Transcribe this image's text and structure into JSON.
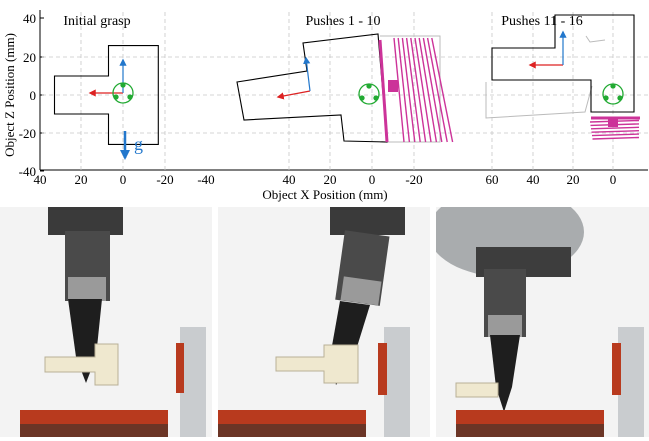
{
  "chart_data": {
    "type": "line",
    "ylabel": "Object Z Position (mm)",
    "xlabel": "Object X Position (mm)",
    "y_ticks": [
      "40",
      "20",
      "0",
      "-20",
      "-40"
    ],
    "ylim": [
      -40,
      40
    ],
    "panels": [
      {
        "title": "Initial grasp",
        "x_ticks": [
          "40",
          "20",
          "0",
          "-20",
          "-40"
        ],
        "xlim": [
          40,
          -40
        ],
        "gravity_label": "g",
        "outline_x": [
          33,
          7,
          7,
          -17,
          -17,
          7,
          7,
          33
        ],
        "outline_z": [
          10,
          10,
          26,
          26,
          -26,
          -26,
          -10,
          -10
        ],
        "gripper_contact_x": 0,
        "gripper_contact_z": 0
      },
      {
        "title": "Pushes 1 - 10",
        "x_ticks": [
          "40",
          "20",
          "0",
          "-20"
        ],
        "xlim": [
          60,
          -32
        ],
        "push_lines": 10
      },
      {
        "title": "Pushes 11 - 16",
        "x_ticks": [
          "60",
          "40",
          "20",
          "0"
        ],
        "xlim": [
          74,
          -12
        ],
        "push_lines": 6
      }
    ]
  },
  "colors": {
    "object_outline": "#000000",
    "push_trace": "#cc3399",
    "gripper": "#22aa33",
    "x_axis_arrow": "#dd2222",
    "z_axis_arrow": "#2277cc",
    "gravity_arrow": "#2277cc",
    "fixture_pad": "#b83a1e"
  },
  "photos": [
    {
      "name": "photo-initial-grasp"
    },
    {
      "name": "photo-pushes-1-10"
    },
    {
      "name": "photo-pushes-11-16"
    }
  ]
}
